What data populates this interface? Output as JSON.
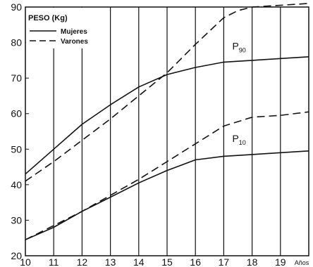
{
  "chart_data": {
    "type": "line",
    "title": "PESO (Kg)",
    "xlabel": "Años",
    "ylabel": "",
    "xlim": [
      10,
      20
    ],
    "ylim": [
      20,
      90
    ],
    "x_ticks": [
      "10",
      "11",
      "12",
      "13",
      "14",
      "15",
      "16",
      "17",
      "18",
      "19"
    ],
    "y_ticks": [
      "20",
      "30",
      "40",
      "50",
      "60",
      "70",
      "80",
      "90"
    ],
    "grid": "vertical",
    "legend": {
      "title": "PESO (Kg)",
      "placement": "top-left",
      "entries": [
        {
          "label": "Mujeres",
          "style": "solid"
        },
        {
          "label": "Varones",
          "style": "dashed"
        }
      ]
    },
    "annotations": [
      {
        "base": "P",
        "sub": "90",
        "x": 17.3,
        "y": 78
      },
      {
        "base": "P",
        "sub": "10",
        "x": 17.3,
        "y": 52
      }
    ],
    "series": [
      {
        "group": "Mujeres",
        "percentile": "P90",
        "style": "solid",
        "x": [
          10,
          11,
          12,
          13,
          14,
          15,
          16,
          17,
          18,
          19,
          20
        ],
        "y": [
          43,
          50,
          57,
          62.5,
          67.5,
          71,
          73,
          74.5,
          75,
          75.5,
          76
        ]
      },
      {
        "group": "Varones",
        "percentile": "P90",
        "style": "dashed",
        "x": [
          10,
          11,
          12,
          13,
          14,
          15,
          16,
          17,
          17.5,
          18,
          19,
          20
        ],
        "y": [
          41,
          46.5,
          52.5,
          58.5,
          65,
          71.5,
          79.5,
          87,
          89,
          90,
          90.5,
          91
        ]
      },
      {
        "group": "Mujeres",
        "percentile": "P10",
        "style": "solid",
        "x": [
          10,
          11,
          12,
          13,
          14,
          15,
          16,
          17,
          18,
          19,
          20
        ],
        "y": [
          24.5,
          28,
          32.5,
          36.5,
          40.5,
          44,
          47,
          48,
          48.5,
          49,
          49.5
        ]
      },
      {
        "group": "Varones",
        "percentile": "P10",
        "style": "dashed",
        "x": [
          10,
          11,
          12,
          13,
          14,
          15,
          16,
          17,
          18,
          19,
          20
        ],
        "y": [
          24.5,
          28.5,
          32.5,
          37,
          41.5,
          46.5,
          51.5,
          56.5,
          59,
          59.5,
          60.5
        ]
      }
    ]
  }
}
